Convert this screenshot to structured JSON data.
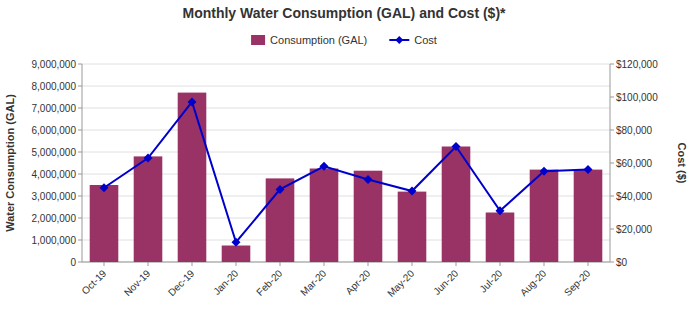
{
  "chart_data": {
    "type": "bar",
    "title": "Monthly Water Consumption (GAL) and Cost ($)*",
    "categories": [
      "Oct-19",
      "Nov-19",
      "Dec-19",
      "Jan-20",
      "Feb-20",
      "Mar-20",
      "Apr-20",
      "May-20",
      "Jun-20",
      "Jul-20",
      "Aug-20",
      "Sep-20"
    ],
    "series": [
      {
        "name": "Consumption (GAL)",
        "type": "bar",
        "color": "#993366",
        "values": [
          3500000,
          4800000,
          7700000,
          750000,
          3800000,
          4250000,
          4150000,
          3200000,
          5250000,
          2250000,
          4200000,
          4200000
        ]
      },
      {
        "name": "Cost",
        "type": "line",
        "color": "#0000CC",
        "marker": "diamond",
        "axis": "y2",
        "values": [
          45000,
          63000,
          97000,
          12000,
          44000,
          58000,
          50000,
          43000,
          70000,
          31000,
          55000,
          56000
        ]
      }
    ],
    "ylabel": "Water Consumption (GAL)",
    "y2label": "Cost ($)",
    "ylim": [
      0,
      9000000
    ],
    "yticks": [
      0,
      {
        "value": 1000000,
        "label": "1,000,000"
      },
      {
        "value": 2000000,
        "label": "2,000,000"
      },
      {
        "value": 3000000,
        "label": "3,000,000"
      },
      {
        "value": 4000000,
        "label": "4,000,000"
      },
      {
        "value": 5000000,
        "label": "5,000,000"
      },
      {
        "value": 6000000,
        "label": "6,000,000"
      },
      {
        "value": 7000000,
        "label": "7,000,000"
      },
      {
        "value": 8000000,
        "label": "8,000,000"
      },
      {
        "value": 9000000,
        "label": "9,000,000"
      }
    ],
    "y2lim": [
      0,
      120000
    ],
    "y2ticks": [
      {
        "value": 0,
        "label": "$0"
      },
      {
        "value": 20000,
        "label": "$20,000"
      },
      {
        "value": 40000,
        "label": "$40,000"
      },
      {
        "value": 60000,
        "label": "$60,000"
      },
      {
        "value": 80000,
        "label": "$80,000"
      },
      {
        "value": 100000,
        "label": "$100,000"
      },
      {
        "value": 120000,
        "label": "$120,000"
      }
    ],
    "grid": true,
    "legend": "top"
  }
}
